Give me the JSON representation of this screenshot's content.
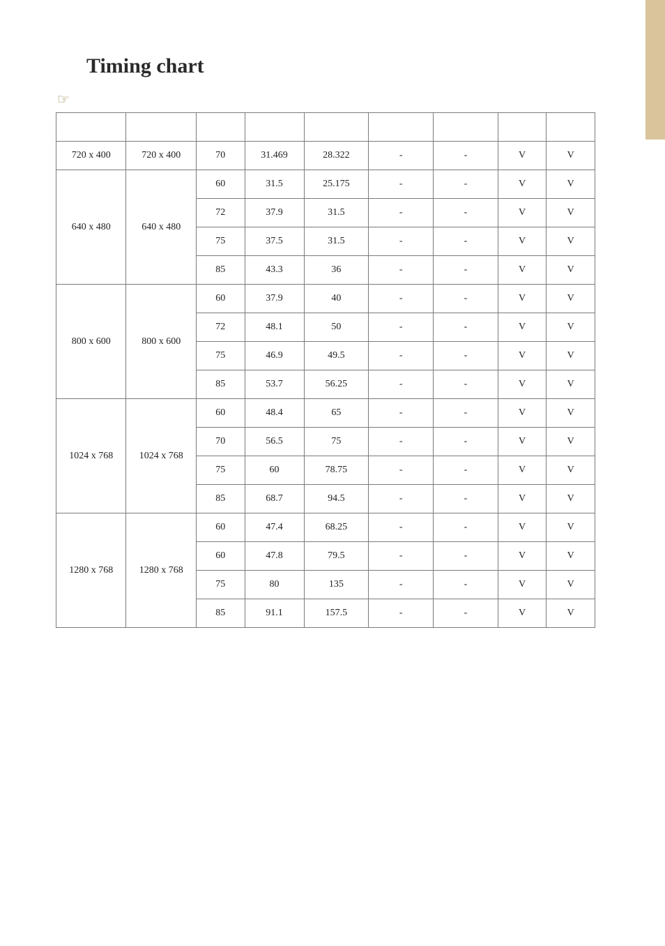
{
  "page": {
    "title": "Timing chart",
    "background_color": "#ffffff",
    "text_color": "#222222",
    "side_tab_color": "#d9c49b",
    "note_pointer_glyph": "☞"
  },
  "table": {
    "border_color": "#7a7a7a",
    "header_cells": [
      "",
      "",
      "",
      "",
      "",
      "",
      "",
      "",
      ""
    ],
    "groups": [
      {
        "label": "720 x 400",
        "resolution": "720 x 400",
        "rows": [
          {
            "hz": "70",
            "h": "31.469",
            "p": "28.322",
            "c5": "-",
            "c6": "-",
            "c7": "V",
            "c8": "V"
          }
        ]
      },
      {
        "label": "640 x 480",
        "resolution": "640 x 480",
        "rows": [
          {
            "hz": "60",
            "h": "31.5",
            "p": "25.175",
            "c5": "-",
            "c6": "-",
            "c7": "V",
            "c8": "V"
          },
          {
            "hz": "72",
            "h": "37.9",
            "p": "31.5",
            "c5": "-",
            "c6": "-",
            "c7": "V",
            "c8": "V"
          },
          {
            "hz": "75",
            "h": "37.5",
            "p": "31.5",
            "c5": "-",
            "c6": "-",
            "c7": "V",
            "c8": "V"
          },
          {
            "hz": "85",
            "h": "43.3",
            "p": "36",
            "c5": "-",
            "c6": "-",
            "c7": "V",
            "c8": "V"
          }
        ]
      },
      {
        "label": "800 x 600",
        "resolution": "800 x 600",
        "rows": [
          {
            "hz": "60",
            "h": "37.9",
            "p": "40",
            "c5": "-",
            "c6": "-",
            "c7": "V",
            "c8": "V"
          },
          {
            "hz": "72",
            "h": "48.1",
            "p": "50",
            "c5": "-",
            "c6": "-",
            "c7": "V",
            "c8": "V"
          },
          {
            "hz": "75",
            "h": "46.9",
            "p": "49.5",
            "c5": "-",
            "c6": "-",
            "c7": "V",
            "c8": "V"
          },
          {
            "hz": "85",
            "h": "53.7",
            "p": "56.25",
            "c5": "-",
            "c6": "-",
            "c7": "V",
            "c8": "V"
          }
        ]
      },
      {
        "label": "1024 x 768",
        "resolution": "1024 x 768",
        "rows": [
          {
            "hz": "60",
            "h": "48.4",
            "p": "65",
            "c5": "-",
            "c6": "-",
            "c7": "V",
            "c8": "V"
          },
          {
            "hz": "70",
            "h": "56.5",
            "p": "75",
            "c5": "-",
            "c6": "-",
            "c7": "V",
            "c8": "V"
          },
          {
            "hz": "75",
            "h": "60",
            "p": "78.75",
            "c5": "-",
            "c6": "-",
            "c7": "V",
            "c8": "V"
          },
          {
            "hz": "85",
            "h": "68.7",
            "p": "94.5",
            "c5": "-",
            "c6": "-",
            "c7": "V",
            "c8": "V"
          }
        ]
      },
      {
        "label": "1280 x 768",
        "resolution": "1280 x 768",
        "rows": [
          {
            "hz": "60",
            "h": "47.4",
            "p": "68.25",
            "c5": "-",
            "c6": "-",
            "c7": "V",
            "c8": "V"
          },
          {
            "hz": "60",
            "h": "47.8",
            "p": "79.5",
            "c5": "-",
            "c6": "-",
            "c7": "V",
            "c8": "V"
          },
          {
            "hz": "75",
            "h": "80",
            "p": "135",
            "c5": "-",
            "c6": "-",
            "c7": "V",
            "c8": "V"
          },
          {
            "hz": "85",
            "h": "91.1",
            "p": "157.5",
            "c5": "-",
            "c6": "-",
            "c7": "V",
            "c8": "V"
          }
        ]
      }
    ]
  }
}
